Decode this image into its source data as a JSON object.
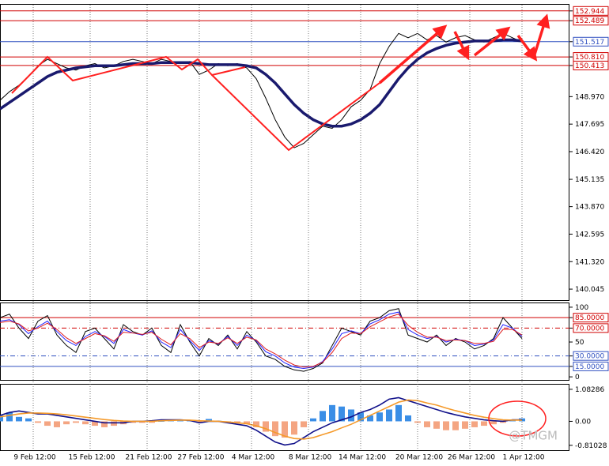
{
  "chart_data": [
    {
      "type": "line",
      "x": [
        0,
        2,
        4,
        6,
        8,
        10,
        12,
        14,
        16,
        18,
        20,
        22,
        24,
        26,
        28,
        30,
        32,
        34,
        36,
        38,
        40,
        42,
        44,
        46,
        48,
        50,
        52,
        54,
        56,
        58,
        60,
        62,
        64,
        66,
        68,
        70,
        72,
        74,
        76,
        78,
        80,
        82,
        84,
        86,
        88,
        90,
        92,
        94,
        96,
        98,
        100,
        102,
        104,
        106,
        108,
        110
      ],
      "xlim": [
        0,
        120
      ],
      "ylim": [
        139.535,
        153.23
      ],
      "yticks": [
        {
          "value": 152.944,
          "label": "152.944",
          "color": "#d00000",
          "line": "solid"
        },
        {
          "value": 152.489,
          "label": "152.489",
          "color": "#d00000",
          "line": "solid"
        },
        {
          "value": 151.517,
          "label": "151.517",
          "color": "#3050c0",
          "line": "solid"
        },
        {
          "value": 150.81,
          "label": "150.810",
          "color": "#d00000",
          "line": "solid"
        },
        {
          "value": 150.413,
          "label": "150.413",
          "color": "#d00000",
          "line": "solid"
        },
        {
          "value": 148.97,
          "label": "148.970"
        },
        {
          "value": 147.695,
          "label": "147.695"
        },
        {
          "value": 146.42,
          "label": "146.420"
        },
        {
          "value": 145.135,
          "label": "145.135"
        },
        {
          "value": 143.87,
          "label": "143.870"
        },
        {
          "value": 142.595,
          "label": "142.595"
        },
        {
          "value": 141.32,
          "label": "141.320"
        },
        {
          "value": 140.045,
          "label": "140.045"
        }
      ],
      "series": [
        {
          "color": "#000000",
          "width": 1,
          "values": [
            148.8,
            149.2,
            149.5,
            149.9,
            150.4,
            150.7,
            150.5,
            150.3,
            150.2,
            150.4,
            150.5,
            150.3,
            150.4,
            150.6,
            150.7,
            150.6,
            150.5,
            150.7,
            150.6,
            150.5,
            150.6,
            150.0,
            150.2,
            150.5,
            150.4,
            150.5,
            150.3,
            149.8,
            148.9,
            147.9,
            147.1,
            146.6,
            146.8,
            147.2,
            147.6,
            147.5,
            147.9,
            148.5,
            148.8,
            149.3,
            150.5,
            151.3,
            151.9,
            151.7,
            151.9,
            151.6,
            151.8,
            151.5,
            151.7,
            151.8,
            151.6,
            151.5,
            151.7,
            151.9,
            151.7,
            151.5
          ]
        },
        {
          "color": "#1a1a6e",
          "width": 3.5,
          "values": [
            148.4,
            148.7,
            149.0,
            149.3,
            149.6,
            149.9,
            150.1,
            150.2,
            150.3,
            150.35,
            150.4,
            150.4,
            150.4,
            150.45,
            150.5,
            150.5,
            150.5,
            150.55,
            150.55,
            150.55,
            150.55,
            150.5,
            150.45,
            150.45,
            150.45,
            150.45,
            150.4,
            150.3,
            150.0,
            149.6,
            149.1,
            148.6,
            148.2,
            147.9,
            147.7,
            147.6,
            147.6,
            147.7,
            147.9,
            148.2,
            148.6,
            149.2,
            149.8,
            150.3,
            150.7,
            151.0,
            151.2,
            151.35,
            151.45,
            151.5,
            151.55,
            151.55,
            151.55,
            151.6,
            151.6,
            151.55
          ]
        }
      ]
    },
    {
      "type": "line",
      "x": [
        0,
        2,
        4,
        6,
        8,
        10,
        12,
        14,
        16,
        18,
        20,
        22,
        24,
        26,
        28,
        30,
        32,
        34,
        36,
        38,
        40,
        42,
        44,
        46,
        48,
        50,
        52,
        54,
        56,
        58,
        60,
        62,
        64,
        66,
        68,
        70,
        72,
        74,
        76,
        78,
        80,
        82,
        84,
        86,
        88,
        90,
        92,
        94,
        96,
        98,
        100,
        102,
        104,
        106,
        108,
        110
      ],
      "xlim": [
        0,
        120
      ],
      "ylim": [
        -4.4,
        105.6
      ],
      "yticks": [
        100,
        {
          "value": 85,
          "label": "85.0000",
          "color": "#d00000",
          "line": "solid"
        },
        {
          "value": 70,
          "label": "70.0000",
          "color": "#d00000",
          "line": "dashdot"
        },
        50,
        {
          "value": 30,
          "label": "30.0000",
          "color": "#3050c0",
          "line": "dashdot"
        },
        {
          "value": 15,
          "label": "15.0000",
          "color": "#3050c0",
          "line": "solid"
        },
        0
      ],
      "series": [
        {
          "color": "#000000",
          "width": 1,
          "values": [
            85,
            90,
            70,
            55,
            80,
            88,
            60,
            45,
            35,
            65,
            70,
            55,
            40,
            75,
            65,
            60,
            70,
            45,
            35,
            75,
            50,
            30,
            55,
            45,
            60,
            40,
            65,
            50,
            30,
            25,
            15,
            10,
            8,
            12,
            20,
            45,
            70,
            65,
            60,
            80,
            85,
            95,
            98,
            60,
            55,
            50,
            60,
            45,
            55,
            50,
            40,
            45,
            55,
            85,
            70,
            55
          ]
        },
        {
          "color": "#2020ff",
          "width": 1,
          "values": [
            80,
            82,
            75,
            62,
            72,
            80,
            65,
            52,
            45,
            58,
            65,
            58,
            48,
            68,
            63,
            60,
            66,
            50,
            42,
            68,
            52,
            38,
            52,
            47,
            58,
            45,
            60,
            52,
            36,
            30,
            20,
            14,
            12,
            14,
            22,
            40,
            62,
            66,
            62,
            76,
            82,
            90,
            93,
            68,
            60,
            55,
            58,
            50,
            54,
            52,
            45,
            47,
            53,
            75,
            70,
            58
          ]
        },
        {
          "color": "#e02020",
          "width": 1,
          "values": [
            78,
            80,
            76,
            66,
            70,
            77,
            68,
            56,
            48,
            55,
            62,
            59,
            51,
            64,
            63,
            61,
            64,
            54,
            46,
            62,
            55,
            42,
            50,
            48,
            56,
            48,
            57,
            53,
            40,
            33,
            24,
            17,
            14,
            15,
            21,
            35,
            55,
            63,
            62,
            72,
            79,
            86,
            90,
            74,
            64,
            57,
            57,
            52,
            53,
            52,
            48,
            48,
            51,
            68,
            68,
            60
          ]
        }
      ]
    },
    {
      "type": "macd",
      "x": [
        0,
        2,
        4,
        6,
        8,
        10,
        12,
        14,
        16,
        18,
        20,
        22,
        24,
        26,
        28,
        30,
        32,
        34,
        36,
        38,
        40,
        42,
        44,
        46,
        48,
        50,
        52,
        54,
        56,
        58,
        60,
        62,
        64,
        66,
        68,
        70,
        72,
        74,
        76,
        78,
        80,
        82,
        84,
        86,
        88,
        90,
        92,
        94,
        96,
        98,
        100,
        102,
        104,
        106,
        108,
        110
      ],
      "xlim": [
        0,
        120
      ],
      "ylim": [
        -0.976,
        1.24
      ],
      "yticks": [
        1.08286,
        {
          "value": 0,
          "label": "0.00"
        },
        -0.81028
      ],
      "xticks": [
        {
          "value": 7,
          "label": "9 Feb 12:00"
        },
        {
          "value": 19,
          "label": "15 Feb 12:00"
        },
        {
          "value": 31,
          "label": "21 Feb 12:00"
        },
        {
          "value": 42,
          "label": "27 Feb 12:00"
        },
        {
          "value": 53,
          "label": "4 Mar 12:00"
        },
        {
          "value": 65,
          "label": "8 Mar 12:00"
        },
        {
          "value": 76,
          "label": "14 Mar 12:00"
        },
        {
          "value": 88,
          "label": "20 Mar 12:00"
        },
        {
          "value": 99,
          "label": "26 Mar 12:00"
        },
        {
          "value": 110,
          "label": "1 Apr 12:00"
        }
      ],
      "annotation": "@TMGM",
      "series": [
        {
          "style": "bars",
          "color": "#3a8ee6",
          "negative_color": "#f4a582",
          "values": [
            0.2,
            0.3,
            0.15,
            0.1,
            -0.05,
            -0.15,
            -0.2,
            -0.1,
            -0.05,
            -0.1,
            -0.15,
            -0.2,
            -0.15,
            -0.1,
            -0.05,
            -0.05,
            -0.05,
            0.0,
            0.03,
            0.05,
            0.03,
            -0.05,
            0.08,
            0.02,
            -0.05,
            -0.05,
            -0.1,
            -0.2,
            -0.35,
            -0.5,
            -0.55,
            -0.45,
            -0.2,
            0.1,
            0.35,
            0.55,
            0.5,
            0.4,
            0.3,
            0.2,
            0.3,
            0.4,
            0.55,
            0.2,
            -0.05,
            -0.2,
            -0.25,
            -0.3,
            -0.3,
            -0.25,
            -0.2,
            -0.15,
            -0.1,
            -0.05,
            0.05,
            0.1
          ]
        },
        {
          "color": "#10108a",
          "width": 1.6,
          "values": [
            0.2,
            0.3,
            0.35,
            0.3,
            0.25,
            0.25,
            0.2,
            0.15,
            0.1,
            0.05,
            0.0,
            -0.05,
            -0.05,
            -0.05,
            0.0,
            0.0,
            0.02,
            0.05,
            0.05,
            0.05,
            0.03,
            -0.05,
            0.0,
            0.0,
            -0.05,
            -0.1,
            -0.15,
            -0.3,
            -0.5,
            -0.7,
            -0.8,
            -0.75,
            -0.55,
            -0.35,
            -0.2,
            -0.05,
            0.05,
            0.15,
            0.3,
            0.4,
            0.55,
            0.75,
            0.8,
            0.7,
            0.6,
            0.5,
            0.4,
            0.3,
            0.22,
            0.15,
            0.1,
            0.05,
            0.02,
            0.0,
            0.05,
            0.05
          ]
        },
        {
          "color": "#f59a2a",
          "width": 1.6,
          "values": [
            0.15,
            0.2,
            0.25,
            0.28,
            0.28,
            0.27,
            0.25,
            0.22,
            0.18,
            0.14,
            0.1,
            0.06,
            0.03,
            0.01,
            0.0,
            0.0,
            0.0,
            0.02,
            0.03,
            0.04,
            0.04,
            0.02,
            0.01,
            0.0,
            -0.02,
            -0.05,
            -0.08,
            -0.15,
            -0.25,
            -0.38,
            -0.5,
            -0.58,
            -0.6,
            -0.55,
            -0.45,
            -0.35,
            -0.22,
            -0.1,
            0.05,
            0.2,
            0.35,
            0.5,
            0.65,
            0.72,
            0.7,
            0.62,
            0.55,
            0.45,
            0.36,
            0.28,
            0.2,
            0.14,
            0.09,
            0.05,
            0.04,
            0.04
          ]
        }
      ]
    }
  ]
}
